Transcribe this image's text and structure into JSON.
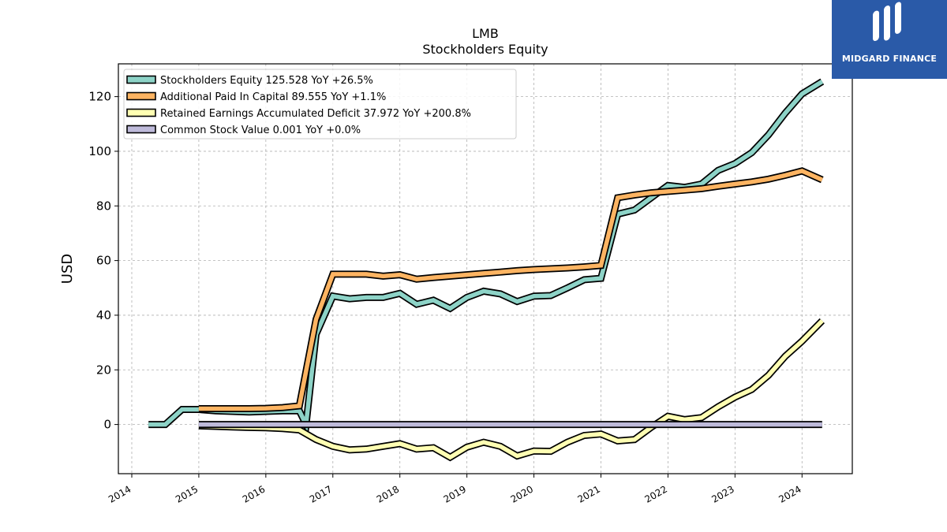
{
  "chart_data": {
    "type": "line",
    "title": "LMB",
    "subtitle": "Stockholders  Equity",
    "xlabel": "",
    "ylabel": "USD",
    "xlim": [
      2013.8,
      2024.75
    ],
    "ylim": [
      -18,
      132
    ],
    "x_ticks": [
      2014,
      2015,
      2016,
      2017,
      2018,
      2019,
      2020,
      2021,
      2022,
      2023,
      2024
    ],
    "x_tick_labels": [
      "2014",
      "2015",
      "2016",
      "2017",
      "2018",
      "2019",
      "2020",
      "2021",
      "2022",
      "2023",
      "2024"
    ],
    "y_ticks": [
      0,
      20,
      40,
      60,
      80,
      100,
      120
    ],
    "y_tick_labels": [
      "0",
      "20",
      "40",
      "60",
      "80",
      "100",
      "120"
    ],
    "grid": true,
    "legend_position": "upper-left",
    "series": [
      {
        "name": "Stockholders Equity",
        "legend": "Stockholders Equity  125.528 YoY +26.5%",
        "color": "#8dd3c7",
        "points": [
          [
            2014.25,
            0.0
          ],
          [
            2014.5,
            0.0
          ],
          [
            2014.75,
            5.5
          ],
          [
            2015.0,
            5.5
          ],
          [
            2015.25,
            5.0
          ],
          [
            2015.5,
            4.8
          ],
          [
            2015.75,
            4.6
          ],
          [
            2016.0,
            4.8
          ],
          [
            2016.25,
            5.0
          ],
          [
            2016.5,
            5.0
          ],
          [
            2016.6,
            0.0
          ],
          [
            2016.75,
            33.0
          ],
          [
            2017.0,
            47.0
          ],
          [
            2017.25,
            46.0
          ],
          [
            2017.5,
            46.5
          ],
          [
            2017.75,
            46.5
          ],
          [
            2018.0,
            48.0
          ],
          [
            2018.25,
            44.0
          ],
          [
            2018.5,
            45.5
          ],
          [
            2018.75,
            42.5
          ],
          [
            2019.0,
            46.5
          ],
          [
            2019.25,
            48.8
          ],
          [
            2019.5,
            47.8
          ],
          [
            2019.75,
            45.0
          ],
          [
            2020.0,
            47.0
          ],
          [
            2020.25,
            47.2
          ],
          [
            2020.5,
            50.0
          ],
          [
            2020.75,
            53.0
          ],
          [
            2021.0,
            53.5
          ],
          [
            2021.25,
            77.0
          ],
          [
            2021.5,
            78.5
          ],
          [
            2021.75,
            83.0
          ],
          [
            2022.0,
            87.5
          ],
          [
            2022.25,
            86.8
          ],
          [
            2022.5,
            88.0
          ],
          [
            2022.75,
            93.0
          ],
          [
            2023.0,
            95.5
          ],
          [
            2023.25,
            99.5
          ],
          [
            2023.5,
            106.0
          ],
          [
            2023.75,
            114.0
          ],
          [
            2024.0,
            121.0
          ],
          [
            2024.3,
            125.5
          ]
        ]
      },
      {
        "name": "Additional Paid In Capital",
        "legend": "Additional Paid In Capital  89.555 YoY +1.1%",
        "color": "#fdb462",
        "points": [
          [
            2015.0,
            5.8
          ],
          [
            2015.25,
            5.8
          ],
          [
            2015.5,
            5.8
          ],
          [
            2015.75,
            5.8
          ],
          [
            2016.0,
            5.9
          ],
          [
            2016.25,
            6.2
          ],
          [
            2016.5,
            6.8
          ],
          [
            2016.75,
            38.5
          ],
          [
            2017.0,
            55.0
          ],
          [
            2017.25,
            55.0
          ],
          [
            2017.5,
            55.0
          ],
          [
            2017.75,
            54.3
          ],
          [
            2018.0,
            54.8
          ],
          [
            2018.25,
            53.2
          ],
          [
            2018.5,
            53.8
          ],
          [
            2018.75,
            54.3
          ],
          [
            2019.0,
            54.8
          ],
          [
            2019.25,
            55.3
          ],
          [
            2019.5,
            55.8
          ],
          [
            2019.75,
            56.3
          ],
          [
            2020.0,
            56.7
          ],
          [
            2020.25,
            57.0
          ],
          [
            2020.5,
            57.3
          ],
          [
            2020.75,
            57.7
          ],
          [
            2021.0,
            58.2
          ],
          [
            2021.25,
            83.0
          ],
          [
            2021.5,
            84.0
          ],
          [
            2021.75,
            84.8
          ],
          [
            2022.0,
            85.3
          ],
          [
            2022.25,
            85.8
          ],
          [
            2022.5,
            86.3
          ],
          [
            2022.75,
            87.2
          ],
          [
            2023.0,
            88.0
          ],
          [
            2023.25,
            88.8
          ],
          [
            2023.5,
            89.8
          ],
          [
            2023.75,
            91.2
          ],
          [
            2024.0,
            92.8
          ],
          [
            2024.3,
            89.555
          ]
        ]
      },
      {
        "name": "Retained Earnings Accumulated Deficit",
        "legend": "Retained Earnings Accumulated Deficit  37.972 YoY +200.8%",
        "color": "#ffffb3",
        "points": [
          [
            2015.0,
            -0.5
          ],
          [
            2015.25,
            -0.7
          ],
          [
            2015.5,
            -0.9
          ],
          [
            2015.75,
            -1.1
          ],
          [
            2016.0,
            -1.2
          ],
          [
            2016.25,
            -1.5
          ],
          [
            2016.5,
            -2.0
          ],
          [
            2016.75,
            -5.5
          ],
          [
            2017.0,
            -8.0
          ],
          [
            2017.25,
            -9.3
          ],
          [
            2017.5,
            -9.0
          ],
          [
            2017.75,
            -8.0
          ],
          [
            2018.0,
            -7.0
          ],
          [
            2018.25,
            -9.0
          ],
          [
            2018.5,
            -8.5
          ],
          [
            2018.75,
            -12.0
          ],
          [
            2019.0,
            -8.3
          ],
          [
            2019.25,
            -6.5
          ],
          [
            2019.5,
            -8.0
          ],
          [
            2019.75,
            -11.5
          ],
          [
            2020.0,
            -9.7
          ],
          [
            2020.25,
            -9.8
          ],
          [
            2020.5,
            -6.5
          ],
          [
            2020.75,
            -4.0
          ],
          [
            2021.0,
            -3.5
          ],
          [
            2021.25,
            -6.0
          ],
          [
            2021.5,
            -5.5
          ],
          [
            2021.75,
            -1.0
          ],
          [
            2022.0,
            3.0
          ],
          [
            2022.25,
            1.8
          ],
          [
            2022.5,
            2.5
          ],
          [
            2022.75,
            6.5
          ],
          [
            2023.0,
            10.0
          ],
          [
            2023.25,
            12.8
          ],
          [
            2023.5,
            18.0
          ],
          [
            2023.75,
            25.0
          ],
          [
            2024.0,
            30.5
          ],
          [
            2024.3,
            37.972
          ]
        ]
      },
      {
        "name": "Common Stock Value",
        "legend": "Common Stock Value  0.001 YoY +0.0%",
        "color": "#bebada",
        "points": [
          [
            2015.0,
            0.001
          ],
          [
            2024.3,
            0.001
          ]
        ]
      }
    ]
  },
  "logo": {
    "text": "MIDGARD FINANCE",
    "bg_color": "#2a5aa8"
  }
}
